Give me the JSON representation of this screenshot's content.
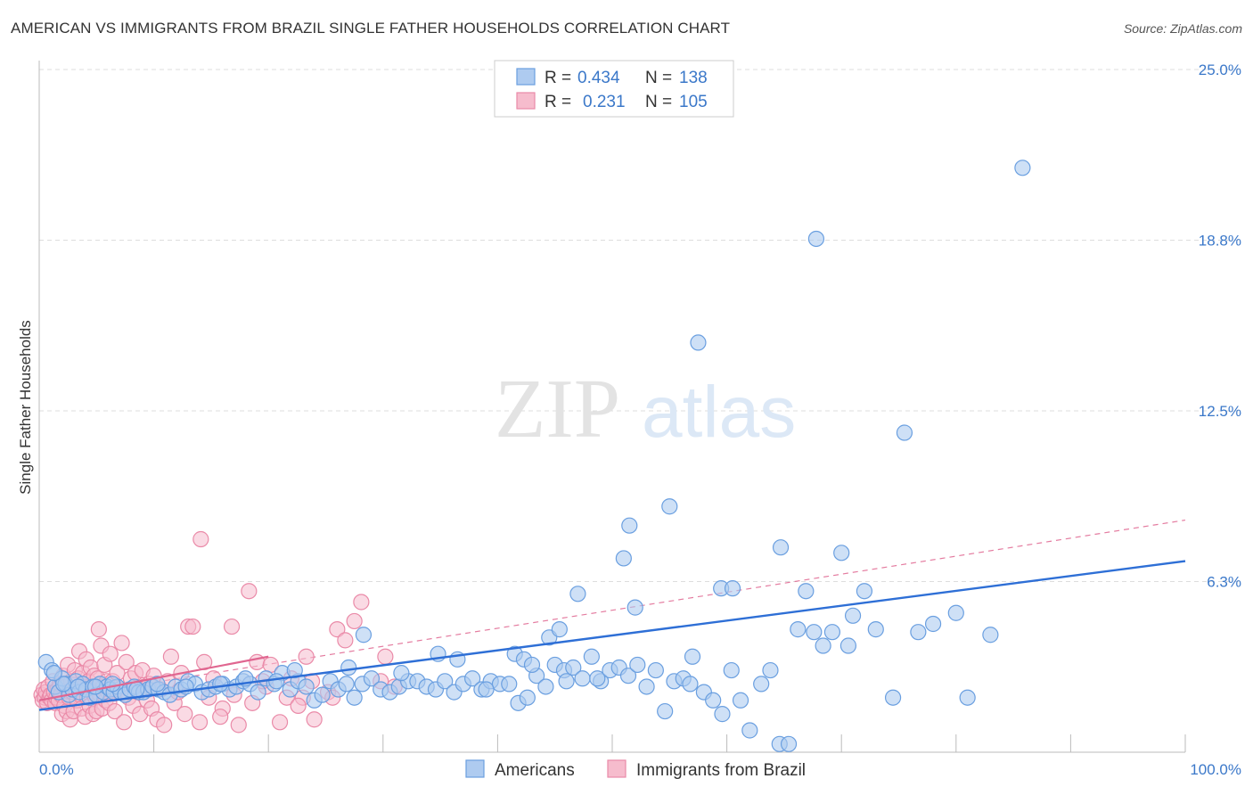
{
  "header": {
    "title": "AMERICAN VS IMMIGRANTS FROM BRAZIL SINGLE FATHER HOUSEHOLDS CORRELATION CHART",
    "source": "Source: ZipAtlas.com"
  },
  "watermark": {
    "zip": "ZIP",
    "atlas": "atlas"
  },
  "legend": {
    "rows": [
      {
        "r_label": "R =",
        "r_value": "0.434",
        "n_label": "N =",
        "n_value": "138"
      },
      {
        "r_label": "R =",
        "r_value": "0.231",
        "n_label": "N =",
        "n_value": "105"
      }
    ]
  },
  "colors": {
    "americans_fill": "#aecbf0",
    "americans_stroke": "#6a9fe0",
    "americans_line": "#2e6fd6",
    "brazil_fill": "#f6bccd",
    "brazil_stroke": "#ea8aa8",
    "brazil_line": "#e06690",
    "grid": "#dddddd",
    "axis_label": "#3b78c9"
  },
  "chart_data": {
    "type": "scatter",
    "title": "AMERICAN VS IMMIGRANTS FROM BRAZIL SINGLE FATHER HOUSEHOLDS CORRELATION CHART",
    "xlabel": "",
    "ylabel": "Single Father Households",
    "xlim": [
      0,
      100
    ],
    "ylim": [
      0,
      25
    ],
    "x_tick_labels": [
      "0.0%",
      "100.0%"
    ],
    "y_tick_labels": [
      "6.3%",
      "12.5%",
      "18.8%",
      "25.0%"
    ],
    "y_ticks": [
      6.25,
      12.5,
      18.75,
      25.0
    ],
    "grid": true,
    "legend_position": "top-center",
    "series": [
      {
        "name": "Americans",
        "r": 0.434,
        "n": 138,
        "trend": {
          "x": [
            0,
            100
          ],
          "y": [
            1.55,
            7.0
          ],
          "style": "solid"
        },
        "points": [
          [
            0.6,
            3.3
          ],
          [
            1.1,
            3.0
          ],
          [
            1.4,
            2.4
          ],
          [
            1.7,
            2.2
          ],
          [
            2.0,
            2.7
          ],
          [
            2.3,
            2.5
          ],
          [
            2.6,
            2.1
          ],
          [
            2.9,
            2.3
          ],
          [
            3.2,
            2.6
          ],
          [
            3.5,
            2.2
          ],
          [
            3.8,
            2.5
          ],
          [
            4.1,
            2.3
          ],
          [
            4.4,
            2.0
          ],
          [
            4.7,
            2.4
          ],
          [
            5.0,
            2.1
          ],
          [
            5.3,
            2.5
          ],
          [
            5.6,
            2.2
          ],
          [
            5.9,
            2.4
          ],
          [
            6.2,
            2.3
          ],
          [
            6.5,
            2.2
          ],
          [
            6.8,
            2.4
          ],
          [
            7.1,
            2.2
          ],
          [
            7.5,
            2.1
          ],
          [
            7.9,
            2.3
          ],
          [
            8.3,
            2.4
          ],
          [
            8.7,
            2.2
          ],
          [
            9.1,
            2.2
          ],
          [
            9.5,
            2.3
          ],
          [
            9.9,
            2.4
          ],
          [
            10.4,
            2.3
          ],
          [
            10.9,
            2.2
          ],
          [
            11.4,
            2.1
          ],
          [
            11.9,
            2.4
          ],
          [
            12.4,
            2.3
          ],
          [
            13.0,
            2.6
          ],
          [
            13.6,
            2.5
          ],
          [
            14.2,
            2.2
          ],
          [
            14.8,
            2.3
          ],
          [
            15.4,
            2.4
          ],
          [
            16.0,
            2.5
          ],
          [
            16.6,
            2.3
          ],
          [
            17.2,
            2.4
          ],
          [
            17.8,
            2.6
          ],
          [
            18.4,
            2.5
          ],
          [
            19.1,
            2.2
          ],
          [
            19.8,
            2.7
          ],
          [
            20.5,
            2.5
          ],
          [
            21.2,
            2.9
          ],
          [
            21.9,
            2.3
          ],
          [
            22.6,
            2.6
          ],
          [
            23.3,
            2.4
          ],
          [
            24.0,
            1.9
          ],
          [
            24.7,
            2.1
          ],
          [
            25.4,
            2.6
          ],
          [
            26.1,
            2.3
          ],
          [
            26.8,
            2.5
          ],
          [
            27.5,
            2.0
          ],
          [
            28.2,
            2.5
          ],
          [
            29.0,
            2.7
          ],
          [
            29.8,
            2.3
          ],
          [
            30.6,
            2.2
          ],
          [
            31.4,
            2.4
          ],
          [
            32.2,
            2.6
          ],
          [
            33.0,
            2.6
          ],
          [
            33.8,
            2.4
          ],
          [
            34.6,
            2.3
          ],
          [
            35.4,
            2.6
          ],
          [
            36.2,
            2.2
          ],
          [
            37.0,
            2.5
          ],
          [
            37.8,
            2.7
          ],
          [
            38.6,
            2.3
          ],
          [
            39.4,
            2.6
          ],
          [
            40.2,
            2.5
          ],
          [
            41.0,
            2.5
          ],
          [
            41.8,
            1.8
          ],
          [
            42.6,
            2.0
          ],
          [
            43.4,
            2.8
          ],
          [
            44.2,
            2.4
          ],
          [
            45.0,
            3.2
          ],
          [
            45.8,
            3.0
          ],
          [
            46.6,
            3.1
          ],
          [
            47.4,
            2.7
          ],
          [
            48.2,
            3.5
          ],
          [
            49.0,
            2.6
          ],
          [
            49.8,
            3.0
          ],
          [
            50.6,
            3.1
          ],
          [
            51.4,
            2.8
          ],
          [
            52.2,
            3.2
          ],
          [
            53.0,
            2.4
          ],
          [
            53.8,
            3.0
          ],
          [
            54.6,
            1.5
          ],
          [
            55.4,
            2.6
          ],
          [
            56.2,
            2.7
          ],
          [
            57.0,
            3.5
          ],
          [
            58.0,
            2.2
          ],
          [
            58.8,
            1.9
          ],
          [
            59.6,
            1.4
          ],
          [
            60.4,
            3.0
          ],
          [
            61.2,
            1.9
          ],
          [
            62.0,
            0.8
          ],
          [
            63.0,
            2.5
          ],
          [
            63.8,
            3.0
          ],
          [
            64.6,
            0.3
          ],
          [
            65.4,
            0.3
          ],
          [
            66.2,
            4.5
          ],
          [
            66.9,
            5.9
          ],
          [
            67.6,
            4.4
          ],
          [
            68.4,
            3.9
          ],
          [
            69.2,
            4.4
          ],
          [
            70.6,
            3.9
          ],
          [
            71.0,
            5.0
          ],
          [
            73.0,
            4.5
          ],
          [
            75.5,
            11.7
          ],
          [
            76.7,
            4.4
          ],
          [
            78.0,
            4.7
          ],
          [
            80.0,
            5.1
          ],
          [
            81.0,
            2.0
          ],
          [
            83.0,
            4.3
          ],
          [
            70.0,
            7.3
          ],
          [
            72.0,
            5.9
          ],
          [
            74.5,
            2.0
          ],
          [
            59.5,
            6.0
          ],
          [
            60.5,
            6.0
          ],
          [
            51.0,
            7.1
          ],
          [
            44.5,
            4.2
          ],
          [
            45.4,
            4.5
          ],
          [
            52.0,
            5.3
          ],
          [
            47.0,
            5.8
          ],
          [
            28.3,
            4.3
          ],
          [
            41.5,
            3.6
          ],
          [
            42.3,
            3.4
          ],
          [
            43.0,
            3.2
          ],
          [
            36.5,
            3.4
          ],
          [
            34.8,
            3.6
          ],
          [
            18.0,
            2.7
          ],
          [
            51.5,
            8.3
          ],
          [
            55.0,
            9.0
          ],
          [
            57.5,
            15.0
          ],
          [
            64.7,
            7.5
          ],
          [
            67.8,
            18.8
          ],
          [
            85.8,
            21.4
          ],
          [
            56.8,
            2.5
          ],
          [
            48.7,
            2.7
          ],
          [
            46.0,
            2.6
          ],
          [
            39.0,
            2.3
          ],
          [
            31.6,
            2.9
          ],
          [
            27.0,
            3.1
          ],
          [
            22.3,
            3.0
          ],
          [
            20.7,
            2.6
          ],
          [
            15.8,
            2.5
          ],
          [
            12.8,
            2.4
          ],
          [
            10.3,
            2.5
          ],
          [
            8.5,
            2.3
          ],
          [
            6.4,
            2.5
          ],
          [
            4.9,
            2.4
          ],
          [
            3.4,
            2.4
          ],
          [
            2.1,
            2.5
          ],
          [
            1.3,
            2.9
          ]
        ]
      },
      {
        "name": "Immigrants from Brazil",
        "r": 0.231,
        "n": 105,
        "trend": {
          "x": [
            0,
            20
          ],
          "y": [
            1.9,
            3.5
          ],
          "style": "solid"
        },
        "trend_extended": {
          "x": [
            0,
            100
          ],
          "y": [
            1.9,
            8.5
          ],
          "style": "dashed"
        },
        "points": [
          [
            0.2,
            2.1
          ],
          [
            0.3,
            1.9
          ],
          [
            0.4,
            2.3
          ],
          [
            0.5,
            2.0
          ],
          [
            0.6,
            2.2
          ],
          [
            0.7,
            1.8
          ],
          [
            0.8,
            2.4
          ],
          [
            0.9,
            2.0
          ],
          [
            1.0,
            2.1
          ],
          [
            1.1,
            1.9
          ],
          [
            1.2,
            2.6
          ],
          [
            1.3,
            2.2
          ],
          [
            1.4,
            1.8
          ],
          [
            1.5,
            2.0
          ],
          [
            1.6,
            2.3
          ],
          [
            1.7,
            1.9
          ],
          [
            1.8,
            2.5
          ],
          [
            1.9,
            2.1
          ],
          [
            2.0,
            1.4
          ],
          [
            2.1,
            2.8
          ],
          [
            2.2,
            1.7
          ],
          [
            2.3,
            2.4
          ],
          [
            2.4,
            1.5
          ],
          [
            2.5,
            3.2
          ],
          [
            2.6,
            2.0
          ],
          [
            2.7,
            1.2
          ],
          [
            2.8,
            2.6
          ],
          [
            2.9,
            2.2
          ],
          [
            3.0,
            1.5
          ],
          [
            3.1,
            3.0
          ],
          [
            3.2,
            2.3
          ],
          [
            3.3,
            1.9
          ],
          [
            3.4,
            2.7
          ],
          [
            3.5,
            3.7
          ],
          [
            3.6,
            2.1
          ],
          [
            3.7,
            1.6
          ],
          [
            3.8,
            2.9
          ],
          [
            3.9,
            2.4
          ],
          [
            4.0,
            1.3
          ],
          [
            4.1,
            3.4
          ],
          [
            4.2,
            2.0
          ],
          [
            4.3,
            2.6
          ],
          [
            4.4,
            1.7
          ],
          [
            4.5,
            3.1
          ],
          [
            4.6,
            2.2
          ],
          [
            4.7,
            1.4
          ],
          [
            4.8,
            2.8
          ],
          [
            4.9,
            2.0
          ],
          [
            5.0,
            1.5
          ],
          [
            5.1,
            2.7
          ],
          [
            5.2,
            4.5
          ],
          [
            5.3,
            2.1
          ],
          [
            5.4,
            3.9
          ],
          [
            5.5,
            1.6
          ],
          [
            5.6,
            2.4
          ],
          [
            5.7,
            3.2
          ],
          [
            5.8,
            1.9
          ],
          [
            5.9,
            2.6
          ],
          [
            6.0,
            2.2
          ],
          [
            6.1,
            1.8
          ],
          [
            6.2,
            3.6
          ],
          [
            6.4,
            2.6
          ],
          [
            6.6,
            1.5
          ],
          [
            6.8,
            2.9
          ],
          [
            7.0,
            2.3
          ],
          [
            7.2,
            4.0
          ],
          [
            7.4,
            1.1
          ],
          [
            7.6,
            3.3
          ],
          [
            7.8,
            2.0
          ],
          [
            8.0,
            2.7
          ],
          [
            8.2,
            1.7
          ],
          [
            8.4,
            2.9
          ],
          [
            8.6,
            2.2
          ],
          [
            8.8,
            1.4
          ],
          [
            9.0,
            3.0
          ],
          [
            9.2,
            2.4
          ],
          [
            9.4,
            1.9
          ],
          [
            9.6,
            2.5
          ],
          [
            9.8,
            1.6
          ],
          [
            10.0,
            2.8
          ],
          [
            10.3,
            1.2
          ],
          [
            10.6,
            2.3
          ],
          [
            10.9,
            1.0
          ],
          [
            11.2,
            2.6
          ],
          [
            11.5,
            3.5
          ],
          [
            11.8,
            1.8
          ],
          [
            12.1,
            2.2
          ],
          [
            12.4,
            2.9
          ],
          [
            12.7,
            1.4
          ],
          [
            13.0,
            4.6
          ],
          [
            13.4,
            4.6
          ],
          [
            14.0,
            1.1
          ],
          [
            14.4,
            3.3
          ],
          [
            14.8,
            2.0
          ],
          [
            15.2,
            2.7
          ],
          [
            16.0,
            1.6
          ],
          [
            16.8,
            4.6
          ],
          [
            17.4,
            1.0
          ],
          [
            18.3,
            5.9
          ],
          [
            19.0,
            3.3
          ],
          [
            19.8,
            2.4
          ],
          [
            21.0,
            1.1
          ],
          [
            22.0,
            2.7
          ],
          [
            23.0,
            2.0
          ],
          [
            23.3,
            3.5
          ],
          [
            24.0,
            1.2
          ],
          [
            25.2,
            2.2
          ],
          [
            26.0,
            4.5
          ],
          [
            26.7,
            4.1
          ],
          [
            28.1,
            5.5
          ],
          [
            30.2,
            3.5
          ],
          [
            31.0,
            2.4
          ],
          [
            14.1,
            7.8
          ],
          [
            20.2,
            3.2
          ],
          [
            15.8,
            1.3
          ],
          [
            17.0,
            2.1
          ],
          [
            18.6,
            1.8
          ],
          [
            19.5,
            2.6
          ],
          [
            21.6,
            2.0
          ],
          [
            22.6,
            1.7
          ],
          [
            23.8,
            2.6
          ],
          [
            25.6,
            2.0
          ],
          [
            27.5,
            4.8
          ],
          [
            29.8,
            2.6
          ]
        ]
      }
    ]
  },
  "bottom_legend": {
    "items": [
      {
        "label": "Americans"
      },
      {
        "label": "Immigrants from Brazil"
      }
    ]
  }
}
